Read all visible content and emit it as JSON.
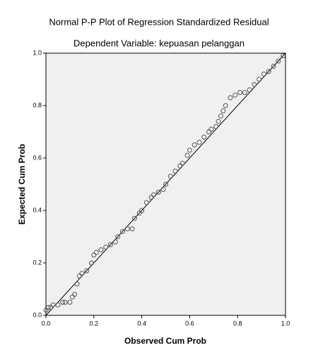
{
  "chart_data": {
    "type": "scatter",
    "title": "Normal P-P Plot of Regression Standardized Residual",
    "subtitle": "Dependent Variable: kepuasan pelanggan",
    "x_label": "Observed Cum Prob",
    "y_label": "Expected Cum Prob",
    "x": [
      0.0,
      0.01,
      0.02,
      0.03,
      0.05,
      0.07,
      0.08,
      0.1,
      0.11,
      0.12,
      0.13,
      0.14,
      0.15,
      0.17,
      0.19,
      0.2,
      0.21,
      0.23,
      0.25,
      0.27,
      0.29,
      0.3,
      0.32,
      0.34,
      0.36,
      0.37,
      0.39,
      0.4,
      0.42,
      0.44,
      0.45,
      0.47,
      0.49,
      0.5,
      0.52,
      0.54,
      0.56,
      0.57,
      0.59,
      0.6,
      0.62,
      0.64,
      0.66,
      0.68,
      0.69,
      0.71,
      0.72,
      0.73,
      0.74,
      0.75,
      0.77,
      0.79,
      0.81,
      0.83,
      0.85,
      0.87,
      0.89,
      0.91,
      0.93,
      0.95,
      0.97,
      0.99
    ],
    "values": [
      0.02,
      0.03,
      0.03,
      0.04,
      0.04,
      0.05,
      0.05,
      0.05,
      0.07,
      0.08,
      0.12,
      0.15,
      0.16,
      0.17,
      0.2,
      0.23,
      0.24,
      0.25,
      0.26,
      0.27,
      0.28,
      0.3,
      0.32,
      0.33,
      0.33,
      0.37,
      0.39,
      0.4,
      0.43,
      0.45,
      0.46,
      0.47,
      0.48,
      0.5,
      0.53,
      0.55,
      0.57,
      0.58,
      0.61,
      0.63,
      0.65,
      0.66,
      0.68,
      0.7,
      0.71,
      0.72,
      0.74,
      0.76,
      0.78,
      0.8,
      0.83,
      0.84,
      0.85,
      0.85,
      0.86,
      0.88,
      0.9,
      0.92,
      0.93,
      0.95,
      0.97,
      0.99
    ],
    "color": "#555555",
    "xlim": [
      0,
      1
    ],
    "ylim": [
      0,
      1
    ],
    "xticks": [
      {
        "value": 0,
        "label": "0.0"
      },
      0.2,
      0.4,
      0.6,
      0.8,
      {
        "value": 1,
        "label": "1.0"
      }
    ],
    "yticks": [
      {
        "value": 0,
        "label": "0.0"
      },
      0.2,
      0.4,
      0.6,
      0.8,
      {
        "value": 1,
        "label": "1.0"
      }
    ]
  }
}
